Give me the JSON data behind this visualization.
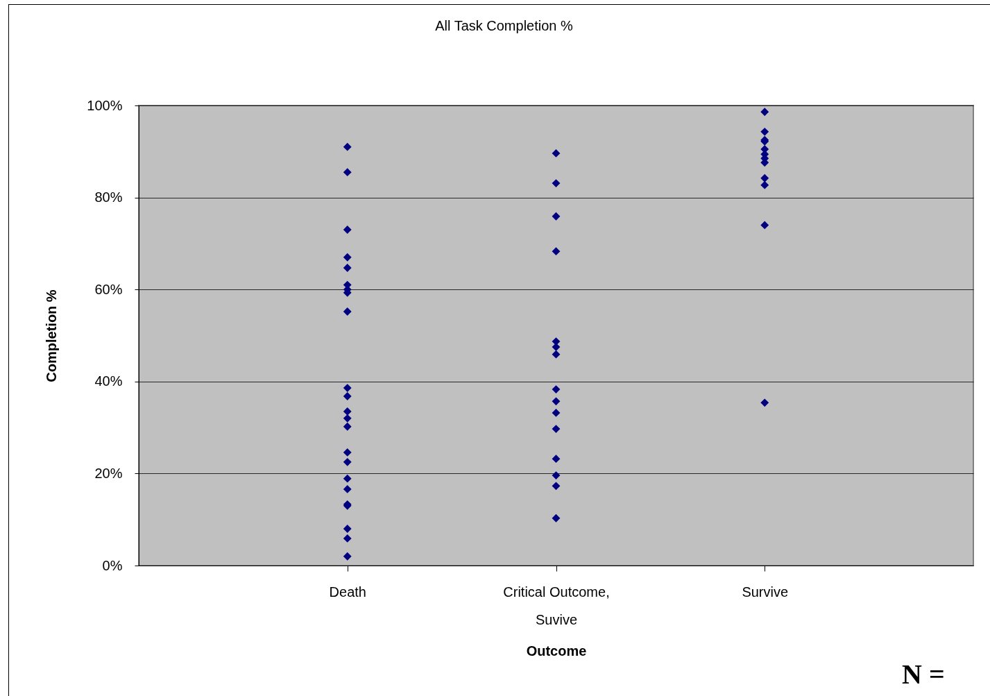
{
  "chart_data": {
    "type": "scatter",
    "title": "All Task Completion %",
    "xlabel": "Outcome",
    "ylabel": "Completion %",
    "categories": [
      "Death",
      "Critical Outcome, Suvive",
      "Survive"
    ],
    "series": [
      {
        "color": "#000080",
        "x": [
          "Death",
          "Death",
          "Death",
          "Death",
          "Death",
          "Death",
          "Death",
          "Death",
          "Death",
          "Death",
          "Death",
          "Death",
          "Death",
          "Death",
          "Death",
          "Death",
          "Death",
          "Death",
          "Death",
          "Death",
          "Death",
          "Death",
          "Death",
          "Critical Outcome, Suvive",
          "Critical Outcome, Suvive",
          "Critical Outcome, Suvive",
          "Critical Outcome, Suvive",
          "Critical Outcome, Suvive",
          "Critical Outcome, Suvive",
          "Critical Outcome, Suvive",
          "Critical Outcome, Suvive",
          "Critical Outcome, Suvive",
          "Critical Outcome, Suvive",
          "Critical Outcome, Suvive",
          "Critical Outcome, Suvive",
          "Critical Outcome, Suvive",
          "Critical Outcome, Suvive",
          "Critical Outcome, Suvive",
          "Survive",
          "Survive",
          "Survive",
          "Survive",
          "Survive",
          "Survive",
          "Survive",
          "Survive",
          "Survive",
          "Survive",
          "Survive",
          "Survive"
        ],
        "values": [
          91,
          85.5,
          73,
          67,
          64.7,
          61,
          60,
          59.3,
          55.2,
          38.6,
          36.8,
          33.5,
          32,
          30.2,
          24.6,
          22.5,
          18.9,
          16.6,
          13.3,
          13,
          8,
          5.9,
          2,
          89.6,
          83.1,
          75.9,
          68.3,
          48.7,
          47.5,
          45.9,
          38.3,
          35.7,
          33.2,
          29.7,
          23.2,
          19.6,
          17.3,
          10.3,
          98.6,
          94.3,
          92.5,
          92.2,
          90.5,
          89.4,
          88.5,
          87.6,
          84.2,
          82.7,
          74,
          35.4
        ]
      }
    ],
    "ylim": [
      0,
      100
    ],
    "yticks": [
      {
        "value": 0,
        "label": "0%"
      },
      {
        "value": 20,
        "label": "20%"
      },
      {
        "value": 40,
        "label": "40%"
      },
      {
        "value": 60,
        "label": "60%"
      },
      {
        "value": 80,
        "label": "80%"
      },
      {
        "value": 100,
        "label": "100%"
      }
    ],
    "grid": "y",
    "marker": "diamond",
    "annotations": [
      "N ="
    ]
  }
}
